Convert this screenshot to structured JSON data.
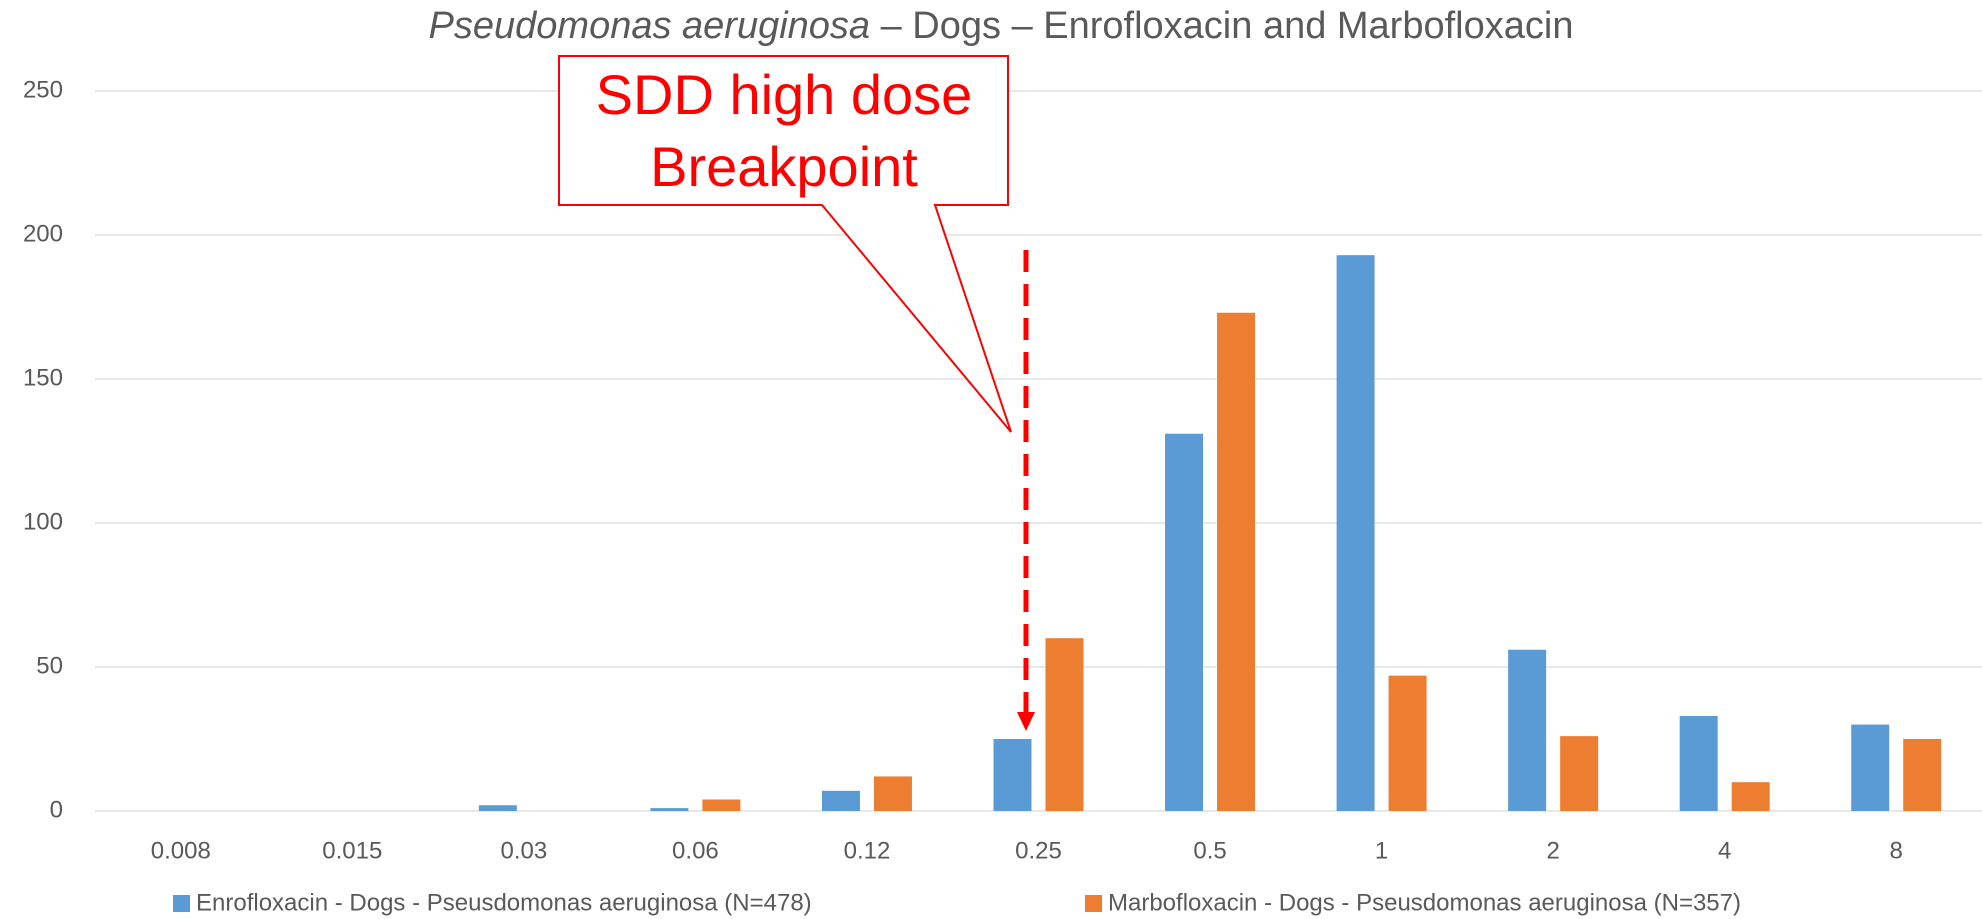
{
  "chart_data": {
    "type": "bar",
    "title_parts": [
      "Pseudomonas aeruginosa",
      " – Dogs – Enrofloxacin and Marbofloxacin"
    ],
    "categories": [
      "0.008",
      "0.015",
      "0.03",
      "0.06",
      "0.12",
      "0.25",
      "0.5",
      "1",
      "2",
      "4",
      "8"
    ],
    "series": [
      {
        "name": "Enrofloxacin - Dogs - Pseusdomonas aeruginosa (N=478)",
        "color": "#5b9bd5",
        "values": [
          0,
          0,
          2,
          1,
          7,
          25,
          131,
          193,
          56,
          33,
          30
        ]
      },
      {
        "name": "Marbofloxacin - Dogs - Pseusdomonas aeruginosa (N=357)",
        "color": "#ed7d31",
        "values": [
          0,
          0,
          0,
          4,
          12,
          60,
          173,
          47,
          26,
          10,
          25
        ]
      }
    ],
    "ylim": [
      0,
      250
    ],
    "yticks": [
      0,
      50,
      100,
      150,
      200,
      250
    ],
    "grid": true,
    "legend": "bottom",
    "annotation": {
      "lines": [
        "SDD high dose",
        "Breakpoint"
      ],
      "color": "#ff0000"
    }
  }
}
